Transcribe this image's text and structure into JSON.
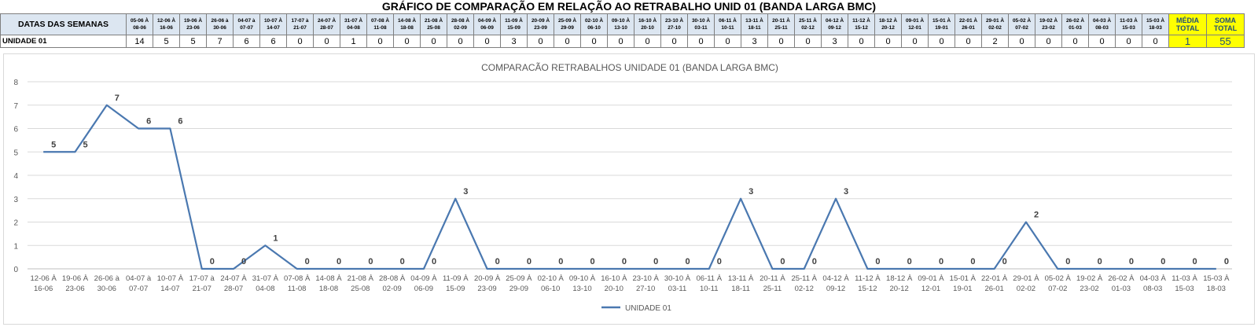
{
  "sheet": {
    "title": "GRÁFICO DE COMPARAÇÃO EM RELAÇÃO AO RETRABALHO UNID 01 (BANDA LARGA BMC)",
    "row_header_label": "DATAS DAS SEMANAS",
    "row_label": "UNIDADE 01",
    "week_headers": [
      [
        "05-06 À",
        "08-06"
      ],
      [
        "12-06 À",
        "16-06"
      ],
      [
        "19-06 À",
        "23-06"
      ],
      [
        "26-06 à",
        "30-06"
      ],
      [
        "04-07 à",
        "07-07"
      ],
      [
        "10-07 À",
        "14-07"
      ],
      [
        "17-07 à",
        "21-07"
      ],
      [
        "24-07 À",
        "28-07"
      ],
      [
        "31-07 À",
        "04-08"
      ],
      [
        "07-08 À",
        "11-08"
      ],
      [
        "14-08 À",
        "18-08"
      ],
      [
        "21-08 À",
        "25-08"
      ],
      [
        "28-08 À",
        "02-09"
      ],
      [
        "04-09 À",
        "06-09"
      ],
      [
        "11-09 À",
        "15-09"
      ],
      [
        "20-09 À",
        "23-09"
      ],
      [
        "25-09 À",
        "29-09"
      ],
      [
        "02-10 À",
        "06-10"
      ],
      [
        "09-10 À",
        "13-10"
      ],
      [
        "16-10 À",
        "20-10"
      ],
      [
        "23-10 À",
        "27-10"
      ],
      [
        "30-10 À",
        "03-11"
      ],
      [
        "06-11 À",
        "10-11"
      ],
      [
        "13-11 À",
        "18-11"
      ],
      [
        "20-11 À",
        "25-11"
      ],
      [
        "25-11 À",
        "02-12"
      ],
      [
        "04-12 À",
        "09-12"
      ],
      [
        "11-12 À",
        "15-12"
      ],
      [
        "18-12 À",
        "20-12"
      ],
      [
        "09-01 À",
        "12-01"
      ],
      [
        "15-01 À",
        "19-01"
      ],
      [
        "22-01 À",
        "26-01"
      ],
      [
        "29-01 À",
        "02-02"
      ],
      [
        "05-02 À",
        "07-02"
      ],
      [
        "19-02 À",
        "23-02"
      ],
      [
        "26-02 À",
        "01-03"
      ],
      [
        "04-03 À",
        "08-03"
      ],
      [
        "11-03 À",
        "15-03"
      ],
      [
        "15-03 À",
        "18-03"
      ]
    ],
    "row_values": [
      14,
      5,
      5,
      7,
      6,
      6,
      0,
      0,
      1,
      0,
      0,
      0,
      0,
      0,
      3,
      0,
      0,
      0,
      0,
      0,
      0,
      0,
      0,
      3,
      0,
      0,
      3,
      0,
      0,
      0,
      0,
      0,
      2,
      0,
      0,
      0,
      0,
      0,
      0
    ],
    "media_label": [
      "MÉDIA",
      "TOTAL"
    ],
    "soma_label": [
      "SOMA",
      "TOTAL"
    ],
    "media_value": "1",
    "soma_value": "55"
  },
  "chart_data": {
    "type": "line",
    "title": "COMPARACÃO RETRABALHOS UNIDADE 01 (BANDA LARGA BMC)",
    "categories": [
      [
        "12-06 À",
        "16-06"
      ],
      [
        "19-06 À",
        "23-06"
      ],
      [
        "26-06 à",
        "30-06"
      ],
      [
        "04-07 à",
        "07-07"
      ],
      [
        "10-07 À",
        "14-07"
      ],
      [
        "17-07 à",
        "21-07"
      ],
      [
        "24-07 À",
        "28-07"
      ],
      [
        "31-07 À",
        "04-08"
      ],
      [
        "07-08 À",
        "11-08"
      ],
      [
        "14-08 À",
        "18-08"
      ],
      [
        "21-08 À",
        "25-08"
      ],
      [
        "28-08 À",
        "02-09"
      ],
      [
        "04-09 À",
        "06-09"
      ],
      [
        "11-09 À",
        "15-09"
      ],
      [
        "20-09 À",
        "23-09"
      ],
      [
        "25-09 À",
        "29-09"
      ],
      [
        "02-10 À",
        "06-10"
      ],
      [
        "09-10 À",
        "13-10"
      ],
      [
        "16-10 À",
        "20-10"
      ],
      [
        "23-10 À",
        "27-10"
      ],
      [
        "30-10 À",
        "03-11"
      ],
      [
        "06-11 À",
        "10-11"
      ],
      [
        "13-11 À",
        "18-11"
      ],
      [
        "20-11 À",
        "25-11"
      ],
      [
        "25-11 À",
        "02-12"
      ],
      [
        "04-12 À",
        "09-12"
      ],
      [
        "11-12 À",
        "15-12"
      ],
      [
        "18-12 À",
        "20-12"
      ],
      [
        "09-01 À",
        "12-01"
      ],
      [
        "15-01 À",
        "19-01"
      ],
      [
        "22-01 À",
        "26-01"
      ],
      [
        "29-01 À",
        "02-02"
      ],
      [
        "05-02 À",
        "07-02"
      ],
      [
        "19-02 À",
        "23-02"
      ],
      [
        "26-02 À",
        "01-03"
      ],
      [
        "04-03 À",
        "08-03"
      ],
      [
        "11-03 À",
        "15-03"
      ],
      [
        "15-03 À",
        "18-03"
      ]
    ],
    "series": [
      {
        "name": "UNIDADE 01",
        "color": "#4a78b0",
        "values": [
          5,
          5,
          7,
          6,
          6,
          0,
          0,
          1,
          0,
          0,
          0,
          0,
          0,
          3,
          0,
          0,
          0,
          0,
          0,
          0,
          0,
          0,
          3,
          0,
          0,
          3,
          0,
          0,
          0,
          0,
          0,
          2,
          0,
          0,
          0,
          0,
          0,
          0
        ]
      }
    ],
    "ylim": [
      0,
      8
    ],
    "yticks": [
      0,
      1,
      2,
      3,
      4,
      5,
      6,
      7,
      8
    ],
    "grid": true,
    "legend": "bottom",
    "xlabel": "",
    "ylabel": ""
  }
}
